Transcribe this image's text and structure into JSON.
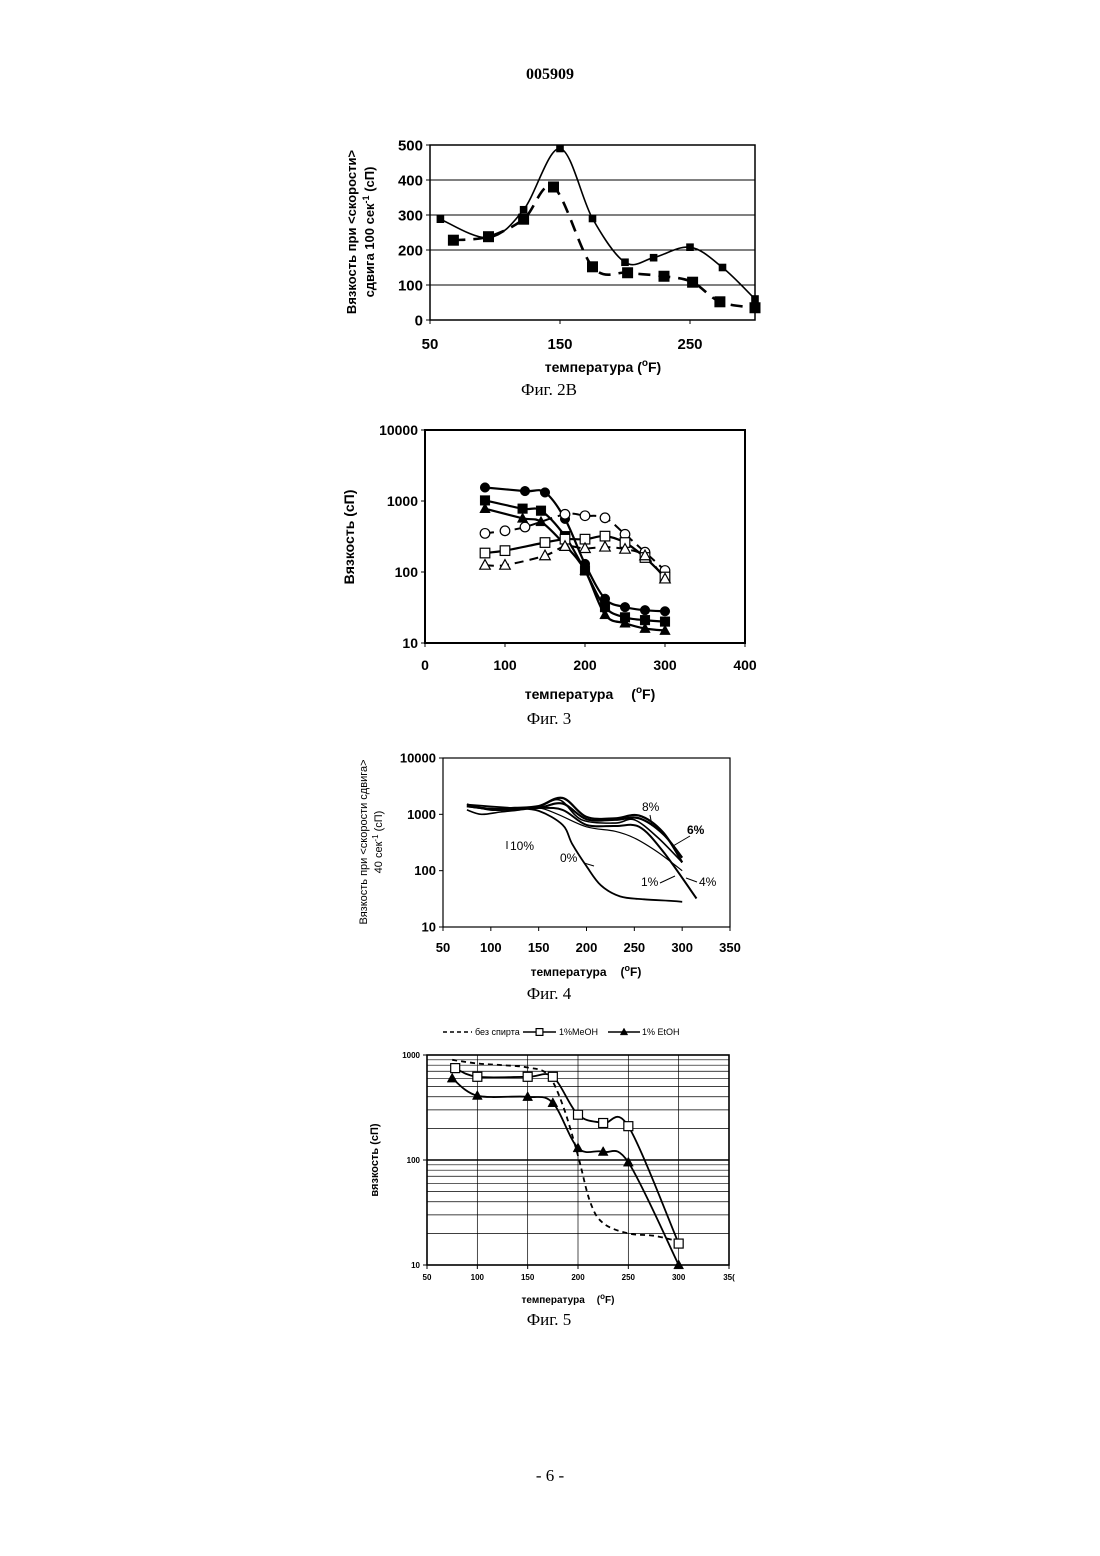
{
  "doc_id": "005909",
  "page_number": "- 6 -",
  "chart_data": [
    {
      "id": "fig2b",
      "type": "line",
      "caption": "Фиг. 2В",
      "xlabel": "температура (°F)",
      "xlabel_main": "температура (",
      "xlabel_unit": "F)",
      "ylabel_line1": "Вязкость при <скорости>",
      "ylabel_line2": "сдвига 100 сек",
      "ylabel_sup": "-1",
      "ylabel_tail": " (сП)",
      "xlim": [
        50,
        300
      ],
      "ylim": [
        0,
        500
      ],
      "x_ticks": [
        "50",
        "150",
        "250"
      ],
      "y_ticks": [
        "0",
        "100",
        "200",
        "300",
        "400",
        "500"
      ],
      "grid": "horizontal",
      "series": [
        {
          "style": "solid-small-square",
          "x": [
            58,
            95,
            122,
            150,
            175,
            200,
            222,
            250,
            275,
            300
          ],
          "y": [
            288,
            235,
            315,
            490,
            290,
            165,
            178,
            208,
            150,
            60
          ]
        },
        {
          "style": "dashed-large-square",
          "x": [
            68,
            95,
            122,
            145,
            175,
            202,
            230,
            252,
            273,
            300
          ],
          "y": [
            228,
            238,
            288,
            380,
            152,
            135,
            125,
            108,
            52,
            35
          ]
        }
      ]
    },
    {
      "id": "fig3",
      "type": "line",
      "caption": "Фиг. 3",
      "xlabel": "температура (°F)",
      "xlabel_main": "температура",
      "xlabel_unit": "F)",
      "ylabel": "Вязкость (сП)",
      "xlim": [
        0,
        400
      ],
      "ylim": [
        10,
        10000
      ],
      "yscale": "log",
      "x_ticks": [
        "0",
        "100",
        "200",
        "300",
        "400"
      ],
      "y_ticks": [
        "10",
        "100",
        "1000",
        "10000"
      ],
      "grid": "none",
      "series": [
        {
          "marker": "filled-circle",
          "line": "solid",
          "x": [
            75,
            125,
            150,
            175,
            200,
            225,
            250,
            275,
            300
          ],
          "y": [
            1550,
            1380,
            1320,
            560,
            130,
            42,
            32,
            29,
            28
          ]
        },
        {
          "marker": "filled-square",
          "line": "solid",
          "x": [
            75,
            122,
            145,
            175,
            200,
            225,
            250,
            275,
            300
          ],
          "y": [
            1020,
            780,
            730,
            320,
            105,
            32,
            23,
            21,
            20
          ]
        },
        {
          "marker": "filled-triangle",
          "line": "solid",
          "x": [
            75,
            122,
            145,
            175,
            200,
            225,
            250,
            275,
            300
          ],
          "y": [
            780,
            570,
            510,
            240,
            105,
            25,
            19,
            16,
            15
          ]
        },
        {
          "marker": "open-circle",
          "line": "dashed",
          "x": [
            75,
            100,
            125,
            175,
            200,
            225,
            250,
            275,
            300
          ],
          "y": [
            350,
            380,
            430,
            650,
            620,
            580,
            340,
            190,
            105
          ]
        },
        {
          "marker": "open-square",
          "line": "solid",
          "x": [
            75,
            100,
            150,
            175,
            200,
            225,
            250,
            275,
            300
          ],
          "y": [
            185,
            200,
            260,
            290,
            290,
            320,
            260,
            160,
            85
          ]
        },
        {
          "marker": "open-triangle",
          "line": "dashed",
          "x": [
            75,
            100,
            150,
            175,
            200,
            225,
            250,
            275,
            300
          ],
          "y": [
            125,
            125,
            170,
            230,
            215,
            225,
            210,
            170,
            80
          ]
        }
      ]
    },
    {
      "id": "fig4",
      "type": "line",
      "caption": "Фиг. 4",
      "xlabel": "температура (°F)",
      "xlabel_main": "температура",
      "xlabel_unit": "F)",
      "ylabel_line1": "Вязкость при <скорости сдвига>",
      "ylabel_line2": "40 сек",
      "ylabel_sup": "-1",
      "ylabel_tail": " (сП)",
      "xlim": [
        50,
        350
      ],
      "ylim": [
        10,
        10000
      ],
      "yscale": "log",
      "x_ticks": [
        "50",
        "100",
        "150",
        "200",
        "250",
        "300",
        "350"
      ],
      "y_ticks": [
        "10",
        "100",
        "1000",
        "10000"
      ],
      "grid": "none",
      "annotations": [
        "8%",
        "6%",
        "10%",
        "0%",
        "1%",
        "4%"
      ],
      "series": [
        {
          "name": "0%",
          "x": [
            75,
            100,
            125,
            150,
            175,
            185,
            200,
            215,
            235,
            260,
            290,
            300
          ],
          "y": [
            1480,
            1380,
            1280,
            1150,
            650,
            300,
            120,
            55,
            35,
            31,
            29,
            28
          ]
        },
        {
          "name": "1%",
          "x": [
            75,
            100,
            125,
            150,
            170,
            200,
            230,
            250,
            275,
            300
          ],
          "y": [
            1500,
            1200,
            1200,
            1300,
            1000,
            600,
            500,
            380,
            210,
            100
          ]
        },
        {
          "name": "4%",
          "x": [
            75,
            100,
            125,
            150,
            175,
            200,
            230,
            255,
            280,
            315
          ],
          "y": [
            1500,
            1200,
            1250,
            1300,
            1200,
            650,
            620,
            600,
            220,
            32
          ]
        },
        {
          "name": "6%",
          "x": [
            75,
            100,
            125,
            150,
            175,
            200,
            230,
            255,
            280,
            300
          ],
          "y": [
            1400,
            1250,
            1280,
            1300,
            1550,
            820,
            800,
            850,
            450,
            170
          ]
        },
        {
          "name": "8%",
          "x": [
            75,
            100,
            125,
            150,
            175,
            200,
            230,
            255,
            280,
            300
          ],
          "y": [
            1400,
            1250,
            1300,
            1400,
            1950,
            900,
            850,
            950,
            480,
            140
          ]
        },
        {
          "name": "10%",
          "x": [
            75,
            90,
            110,
            130,
            150,
            172,
            195,
            230,
            250,
            275,
            300
          ],
          "y": [
            1200,
            1000,
            1100,
            1200,
            1350,
            1800,
            800,
            700,
            800,
            380,
            140
          ]
        }
      ]
    },
    {
      "id": "fig5",
      "type": "line",
      "caption": "Фиг. 5",
      "xlabel": "температура (°F)",
      "xlabel_main": "температура",
      "xlabel_unit": "F)",
      "ylabel": "вязкость (сП)",
      "xlim": [
        50,
        350
      ],
      "ylim": [
        10,
        1000
      ],
      "yscale": "log",
      "x_ticks": [
        "50",
        "100",
        "150",
        "200",
        "250",
        "300",
        "35("
      ],
      "y_ticks": [
        "10",
        "100",
        "1000"
      ],
      "grid": "both-log",
      "legend": [
        "без спирта",
        "1%MeOH",
        "1% EtOH"
      ],
      "series": [
        {
          "name": "без спирта",
          "line": "dashed",
          "x": [
            75,
            100,
            125,
            150,
            170,
            185,
            200,
            212,
            225,
            250,
            275,
            298
          ],
          "y": [
            900,
            830,
            800,
            760,
            650,
            330,
            110,
            40,
            25,
            20,
            19,
            17
          ]
        },
        {
          "name": "1%MeOH",
          "line": "solid",
          "marker": "open-square",
          "x": [
            78,
            100,
            150,
            175,
            200,
            225,
            250,
            300
          ],
          "y": [
            750,
            620,
            620,
            620,
            270,
            225,
            210,
            16
          ]
        },
        {
          "name": "1% EtOH",
          "line": "solid",
          "marker": "filled-triangle",
          "x": [
            75,
            100,
            150,
            175,
            200,
            225,
            250,
            300
          ],
          "y": [
            600,
            410,
            400,
            350,
            130,
            120,
            95,
            10
          ]
        }
      ]
    }
  ]
}
